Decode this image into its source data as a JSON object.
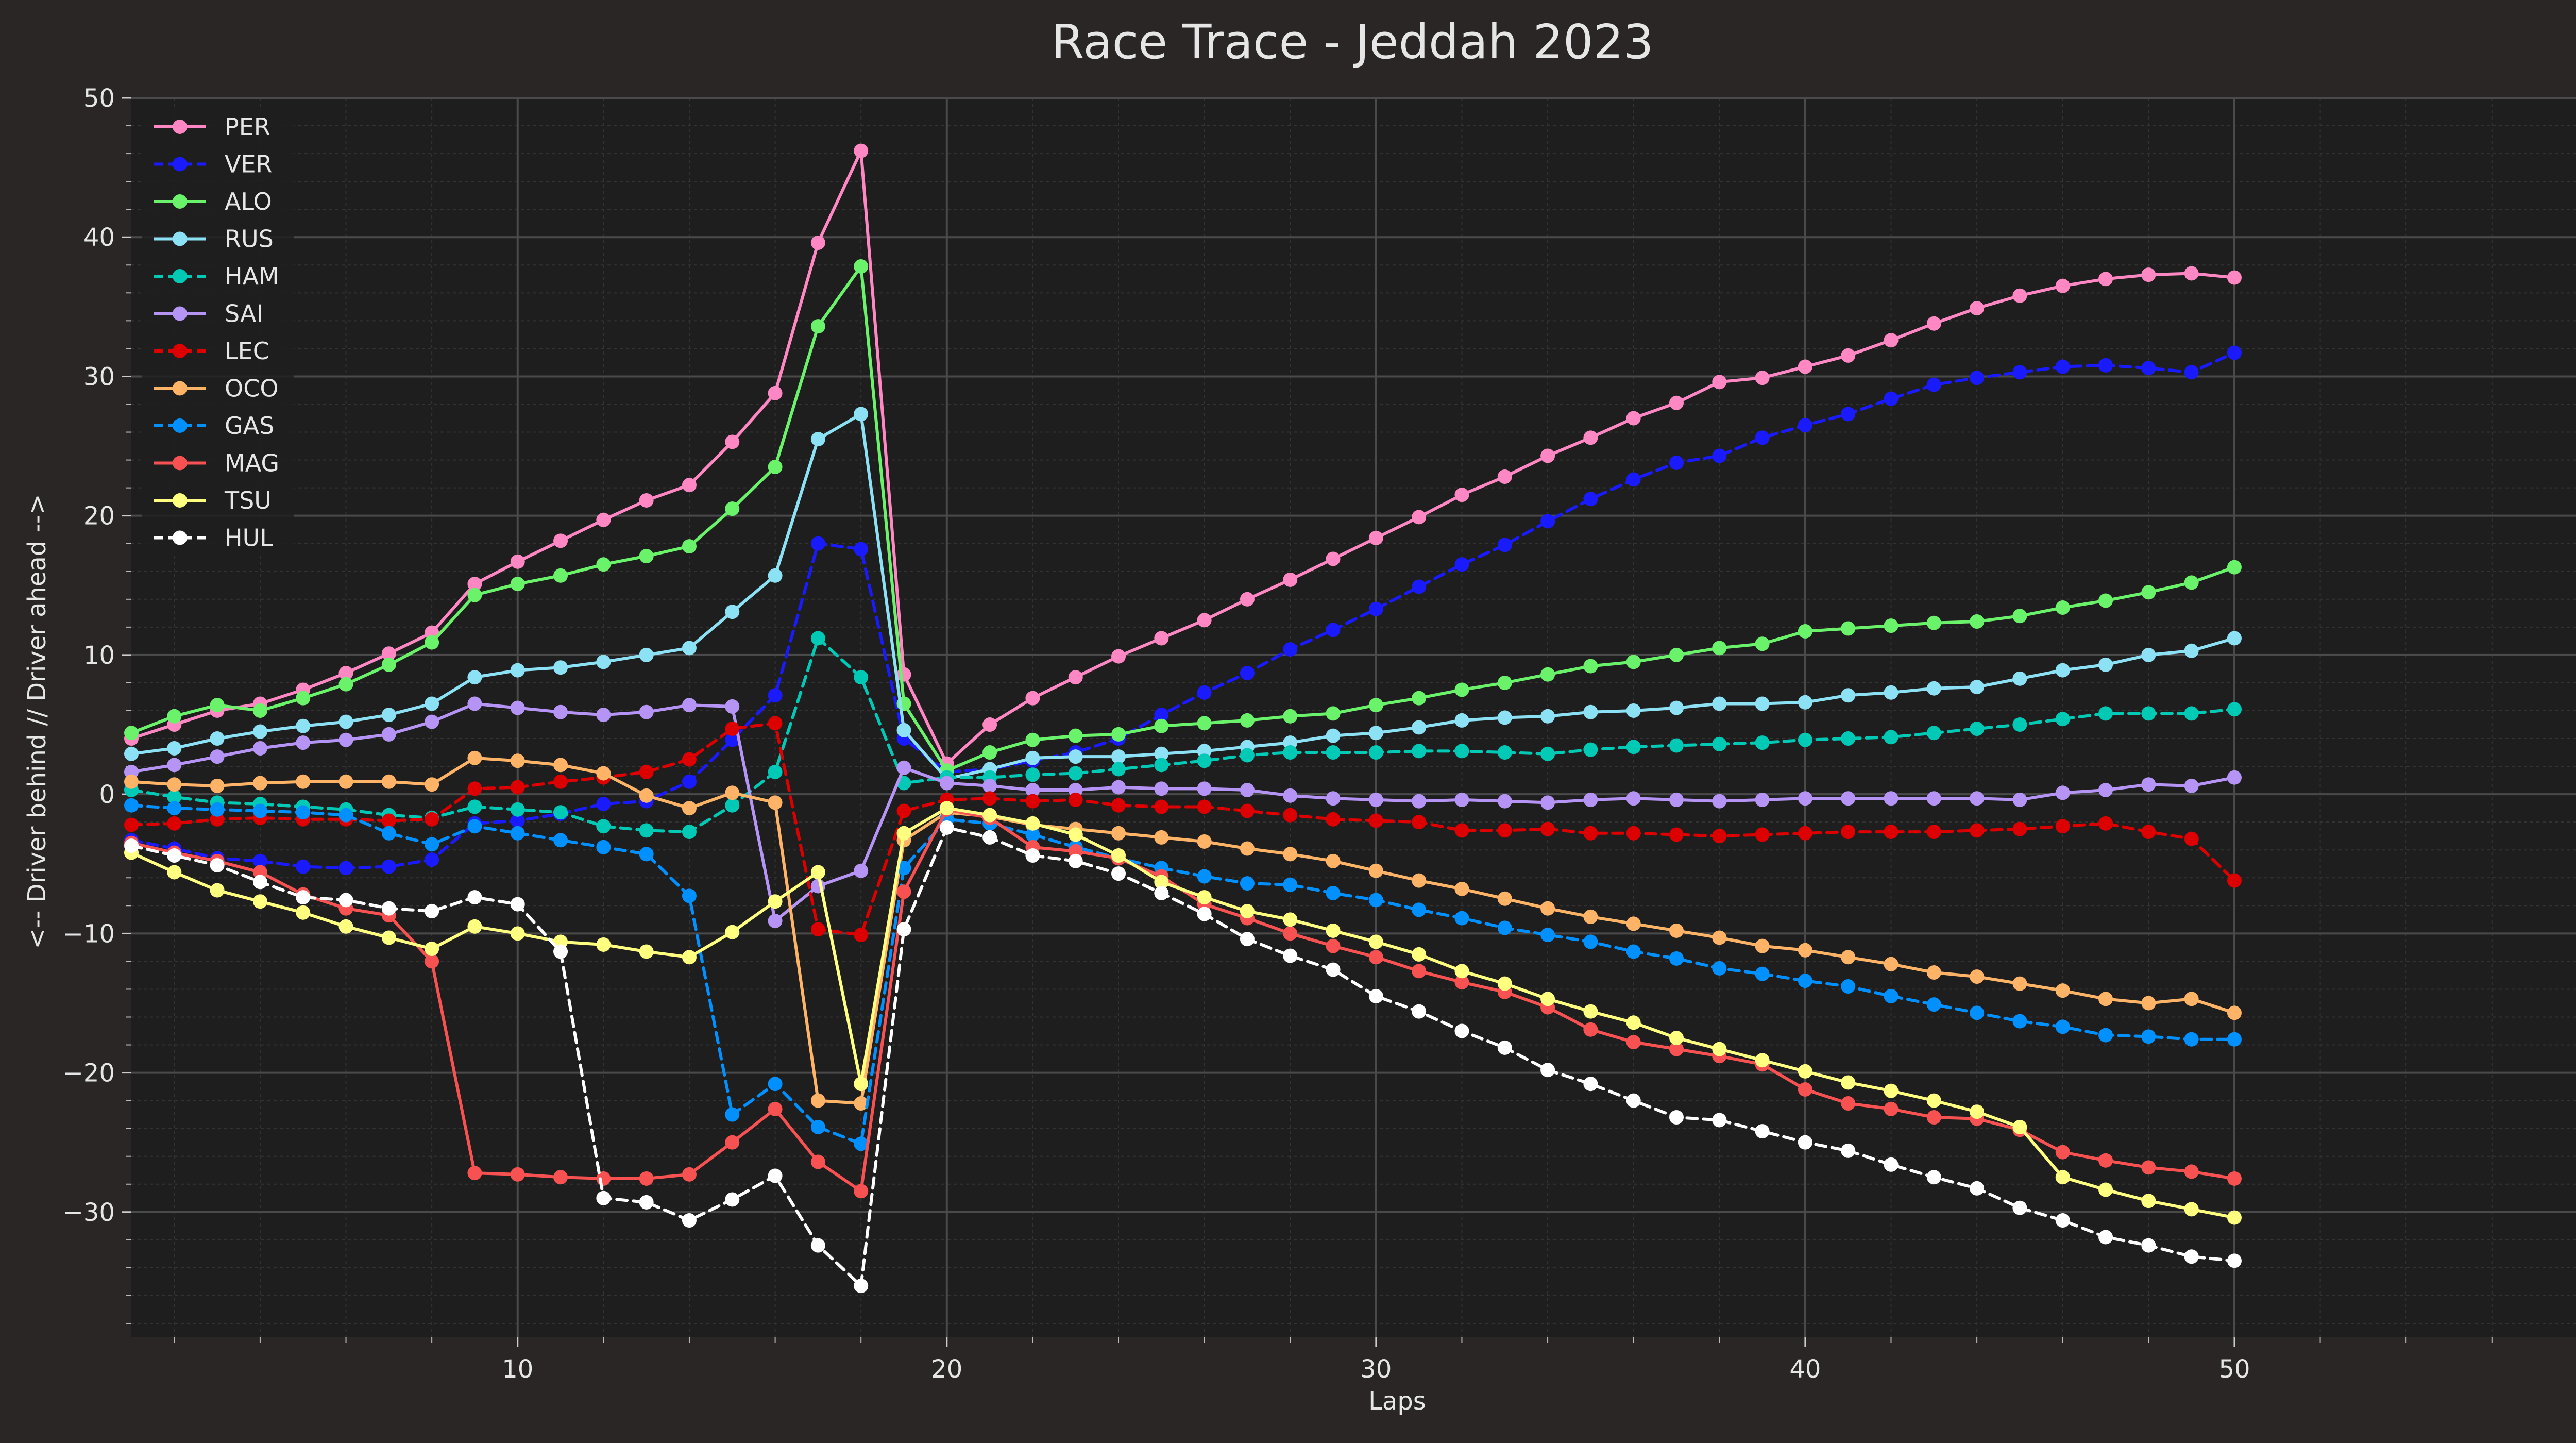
{
  "chart_data": {
    "type": "line",
    "title": "Race Trace - Jeddah 2023",
    "xlabel": "Laps",
    "ylabel": "<-- Driver behind // Driver ahead -->",
    "xlim": [
      1,
      60
    ],
    "ylim": [
      -39,
      50
    ],
    "xticks": [
      10,
      20,
      30,
      40,
      50,
      60
    ],
    "yticks": [
      -30,
      -20,
      -10,
      0,
      10,
      20,
      30,
      40,
      50
    ],
    "grid": true,
    "legend_position": "top-left",
    "colors": {
      "background": "#292625",
      "plot_background": "#1e1e1e",
      "grid_major": "#4a4a4a",
      "grid_minor": "#333333",
      "text": "#e6e6e6"
    },
    "x": [
      1,
      2,
      3,
      4,
      5,
      6,
      7,
      8,
      9,
      10,
      11,
      12,
      13,
      14,
      15,
      16,
      17,
      18,
      19,
      20,
      21,
      22,
      23,
      24,
      25,
      26,
      27,
      28,
      29,
      30,
      31,
      32,
      33,
      34,
      35,
      36,
      37,
      38,
      39,
      40,
      41,
      42,
      43,
      44,
      45,
      46,
      47,
      48,
      49,
      50
    ],
    "series": [
      {
        "name": "PER",
        "color": "#ff87c3",
        "dash": false,
        "values": [
          4.0,
          5.0,
          6.0,
          6.5,
          7.5,
          8.7,
          10.1,
          11.6,
          15.1,
          16.7,
          18.2,
          19.7,
          21.1,
          22.2,
          25.3,
          28.8,
          39.6,
          46.2,
          8.6,
          2.2,
          5.0,
          6.9,
          8.4,
          9.9,
          11.2,
          12.5,
          14.0,
          15.4,
          16.9,
          18.4,
          19.9,
          21.5,
          22.8,
          24.3,
          25.6,
          27.0,
          28.1,
          29.6,
          29.9,
          30.7,
          31.5,
          32.6,
          33.8,
          34.9,
          35.8,
          36.5,
          37.0,
          37.3,
          37.4,
          37.1
        ]
      },
      {
        "name": "VER",
        "color": "#1a1aff",
        "dash": true,
        "values": [
          -3.3,
          -3.9,
          -4.6,
          -4.8,
          -5.2,
          -5.3,
          -5.2,
          -4.7,
          -2.1,
          -1.9,
          -1.4,
          -0.7,
          -0.5,
          0.9,
          3.9,
          7.1,
          18.0,
          17.6,
          4.0,
          1.6,
          1.8,
          2.4,
          3.0,
          4.0,
          5.7,
          7.3,
          8.7,
          10.4,
          11.8,
          13.3,
          14.9,
          16.5,
          17.9,
          19.6,
          21.2,
          22.6,
          23.8,
          24.3,
          25.6,
          26.5,
          27.3,
          28.4,
          29.4,
          29.9,
          30.3,
          30.7,
          30.8,
          30.6,
          30.3,
          31.7
        ]
      },
      {
        "name": "ALO",
        "color": "#6af36a",
        "dash": false,
        "values": [
          4.4,
          5.6,
          6.4,
          6.0,
          6.9,
          7.9,
          9.3,
          10.9,
          14.3,
          15.1,
          15.7,
          16.5,
          17.1,
          17.8,
          20.5,
          23.5,
          33.6,
          37.9,
          6.5,
          1.7,
          3.0,
          3.9,
          4.2,
          4.3,
          4.9,
          5.1,
          5.3,
          5.6,
          5.8,
          6.4,
          6.9,
          7.5,
          8.0,
          8.6,
          9.2,
          9.5,
          10.0,
          10.5,
          10.8,
          11.7,
          11.9,
          12.1,
          12.3,
          12.4,
          12.8,
          13.4,
          13.9,
          14.5,
          15.2,
          16.3
        ]
      },
      {
        "name": "RUS",
        "color": "#8de1f4",
        "dash": false,
        "values": [
          2.9,
          3.3,
          4.0,
          4.5,
          4.9,
          5.2,
          5.7,
          6.5,
          8.4,
          8.9,
          9.1,
          9.5,
          10.0,
          10.5,
          13.1,
          15.7,
          25.5,
          27.3,
          4.6,
          1.1,
          1.8,
          2.6,
          2.7,
          2.7,
          2.9,
          3.1,
          3.4,
          3.7,
          4.2,
          4.4,
          4.8,
          5.3,
          5.5,
          5.6,
          5.9,
          6.0,
          6.2,
          6.5,
          6.5,
          6.6,
          7.1,
          7.3,
          7.6,
          7.7,
          8.3,
          8.9,
          9.3,
          10.0,
          10.3,
          11.2
        ]
      },
      {
        "name": "HAM",
        "color": "#00c9b6",
        "dash": true,
        "values": [
          0.3,
          -0.2,
          -0.6,
          -0.7,
          -0.9,
          -1.1,
          -1.5,
          -1.7,
          -0.9,
          -1.1,
          -1.3,
          -2.3,
          -2.6,
          -2.7,
          -0.8,
          1.6,
          11.2,
          8.4,
          0.8,
          1.2,
          1.2,
          1.4,
          1.5,
          1.8,
          2.1,
          2.4,
          2.8,
          3.0,
          3.0,
          3.0,
          3.1,
          3.1,
          3.0,
          2.9,
          3.2,
          3.4,
          3.5,
          3.6,
          3.7,
          3.9,
          4.0,
          4.1,
          4.4,
          4.7,
          5.0,
          5.4,
          5.8,
          5.8,
          5.8,
          6.1
        ]
      },
      {
        "name": "SAI",
        "color": "#b694f5",
        "dash": false,
        "values": [
          1.6,
          2.1,
          2.7,
          3.3,
          3.7,
          3.9,
          4.3,
          5.2,
          6.5,
          6.2,
          5.9,
          5.7,
          5.9,
          6.4,
          6.3,
          -9.1,
          -6.6,
          -5.5,
          1.9,
          0.8,
          0.6,
          0.3,
          0.3,
          0.5,
          0.4,
          0.4,
          0.3,
          -0.1,
          -0.3,
          -0.4,
          -0.5,
          -0.4,
          -0.5,
          -0.6,
          -0.4,
          -0.3,
          -0.4,
          -0.5,
          -0.4,
          -0.3,
          -0.3,
          -0.3,
          -0.3,
          -0.3,
          -0.4,
          0.1,
          0.3,
          0.7,
          0.6,
          1.2
        ]
      },
      {
        "name": "LEC",
        "color": "#dc0000",
        "dash": true,
        "values": [
          -2.2,
          -2.1,
          -1.8,
          -1.7,
          -1.8,
          -1.8,
          -1.9,
          -1.8,
          0.4,
          0.5,
          0.9,
          1.2,
          1.6,
          2.5,
          4.7,
          5.1,
          -9.7,
          -10.1,
          -1.2,
          -0.4,
          -0.3,
          -0.5,
          -0.4,
          -0.8,
          -0.9,
          -0.9,
          -1.2,
          -1.5,
          -1.8,
          -1.9,
          -2.0,
          -2.6,
          -2.6,
          -2.5,
          -2.8,
          -2.8,
          -2.9,
          -3.0,
          -2.9,
          -2.8,
          -2.7,
          -2.7,
          -2.7,
          -2.6,
          -2.5,
          -2.3,
          -2.1,
          -2.7,
          -3.2,
          -6.2
        ]
      },
      {
        "name": "OCO",
        "color": "#ffb366",
        "dash": false,
        "values": [
          0.9,
          0.7,
          0.6,
          0.8,
          0.9,
          0.9,
          0.9,
          0.7,
          2.6,
          2.4,
          2.1,
          1.5,
          -0.1,
          -1.0,
          0.1,
          -0.6,
          -22.0,
          -22.2,
          -3.3,
          -1.3,
          -1.6,
          -2.2,
          -2.5,
          -2.8,
          -3.1,
          -3.4,
          -3.9,
          -4.3,
          -4.8,
          -5.5,
          -6.2,
          -6.8,
          -7.5,
          -8.2,
          -8.8,
          -9.3,
          -9.8,
          -10.3,
          -10.9,
          -11.2,
          -11.7,
          -12.2,
          -12.8,
          -13.1,
          -13.6,
          -14.1,
          -14.7,
          -15.0,
          -14.7,
          -15.7
        ]
      },
      {
        "name": "GAS",
        "color": "#0090ff",
        "dash": true,
        "values": [
          -0.8,
          -1.0,
          -1.1,
          -1.2,
          -1.3,
          -1.5,
          -2.8,
          -3.6,
          -2.3,
          -2.8,
          -3.3,
          -3.8,
          -4.3,
          -7.3,
          -23.0,
          -20.8,
          -23.9,
          -25.1,
          -5.3,
          -1.8,
          -2.1,
          -2.9,
          -3.8,
          -4.6,
          -5.3,
          -5.9,
          -6.4,
          -6.5,
          -7.1,
          -7.6,
          -8.3,
          -8.9,
          -9.6,
          -10.1,
          -10.6,
          -11.3,
          -11.8,
          -12.5,
          -12.9,
          -13.4,
          -13.8,
          -14.5,
          -15.1,
          -15.7,
          -16.3,
          -16.7,
          -17.3,
          -17.4,
          -17.6,
          -17.6
        ]
      },
      {
        "name": "MAG",
        "color": "#f75151",
        "dash": false,
        "values": [
          -3.5,
          -4.2,
          -4.8,
          -5.6,
          -7.2,
          -8.2,
          -8.7,
          -12.0,
          -27.2,
          -27.3,
          -27.5,
          -27.6,
          -27.6,
          -27.3,
          -25.0,
          -22.6,
          -26.4,
          -28.5,
          -7.0,
          -1.1,
          -1.7,
          -3.8,
          -4.1,
          -4.6,
          -5.9,
          -7.9,
          -8.9,
          -10.0,
          -10.9,
          -11.7,
          -12.7,
          -13.5,
          -14.2,
          -15.3,
          -16.9,
          -17.8,
          -18.3,
          -18.8,
          -19.4,
          -21.2,
          -22.2,
          -22.6,
          -23.2,
          -23.3,
          -24.1,
          -25.7,
          -26.3,
          -26.8,
          -27.1,
          -27.6
        ]
      },
      {
        "name": "TSU",
        "color": "#ffff80",
        "dash": false,
        "values": [
          -4.2,
          -5.6,
          -6.9,
          -7.7,
          -8.5,
          -9.5,
          -10.3,
          -11.1,
          -9.5,
          -10.0,
          -10.6,
          -10.8,
          -11.3,
          -11.7,
          -9.9,
          -7.7,
          -5.6,
          -20.8,
          -2.8,
          -1.0,
          -1.5,
          -2.1,
          -2.9,
          -4.4,
          -6.3,
          -7.4,
          -8.4,
          -9.0,
          -9.8,
          -10.6,
          -11.5,
          -12.7,
          -13.6,
          -14.7,
          -15.6,
          -16.4,
          -17.5,
          -18.3,
          -19.1,
          -19.9,
          -20.7,
          -21.3,
          -22.0,
          -22.8,
          -23.9,
          -27.5,
          -28.4,
          -29.2,
          -29.8,
          -30.4
        ]
      },
      {
        "name": "HUL",
        "color": "#ffffff",
        "dash": true,
        "values": [
          -3.7,
          -4.4,
          -5.1,
          -6.3,
          -7.4,
          -7.6,
          -8.2,
          -8.4,
          -7.4,
          -7.9,
          -11.3,
          -29.0,
          -29.3,
          -30.6,
          -29.1,
          -27.4,
          -32.4,
          -35.3,
          -9.7,
          -2.4,
          -3.1,
          -4.4,
          -4.8,
          -5.7,
          -7.1,
          -8.6,
          -10.4,
          -11.6,
          -12.6,
          -14.5,
          -15.6,
          -17.0,
          -18.2,
          -19.8,
          -20.8,
          -22.0,
          -23.2,
          -23.4,
          -24.2,
          -25.0,
          -25.6,
          -26.6,
          -27.5,
          -28.3,
          -29.7,
          -30.6,
          -31.8,
          -32.4,
          -33.2,
          -33.5
        ]
      }
    ]
  }
}
